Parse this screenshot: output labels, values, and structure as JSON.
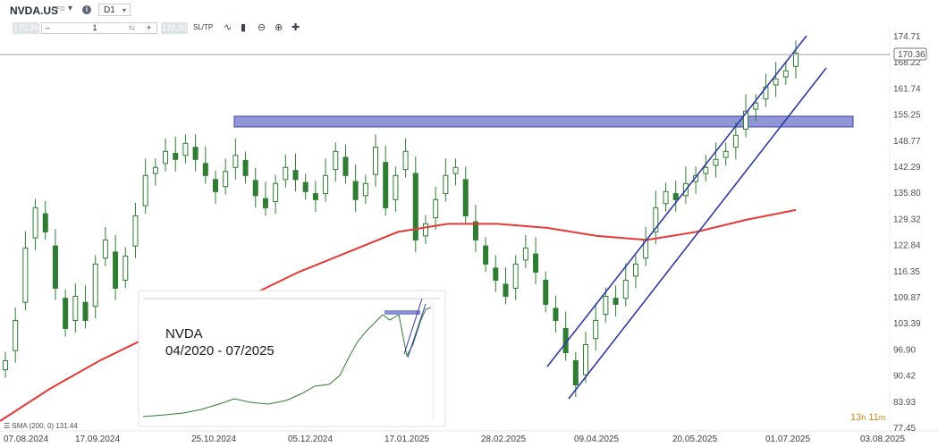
{
  "toolbar": {
    "symbol": "NVDA.US",
    "symbol_type": "CFD",
    "timeframe": "D1",
    "sell_price": "170.36",
    "buy_price": "170.90",
    "quantity": "1",
    "sltp_label": "SL/TP"
  },
  "overlay": {
    "inset_title": "NVDA",
    "inset_subtitle": "04/2020 - 07/2025",
    "sma_legend": "SMA (200, 0) 131.44",
    "timer_hours": "13",
    "timer_h_unit": "h",
    "timer_minutes": "11",
    "timer_m_unit": "m",
    "colors": {
      "candle": "#2e7d32",
      "sma": "#e53935",
      "channel": "#2f3aa4",
      "zone": "#6b73c8",
      "timer": "#d08a1e"
    }
  },
  "chart_data": {
    "type": "candlestick",
    "title": "NVDA.US",
    "ylim": [
      77.45,
      176.0
    ],
    "y_ticks": [
      "174.71",
      "168.22",
      "161.74",
      "155.25",
      "148.77",
      "142.29",
      "135.80",
      "129.32",
      "122.84",
      "116.35",
      "109.87",
      "103.39",
      "96.90",
      "90.42",
      "83.93",
      "77.45"
    ],
    "x_ticks": [
      "07.08.2024",
      "17.09.2024",
      "25.10.2024",
      "05.12.2024",
      "17.01.2025",
      "28.02.2025",
      "09.04.2025",
      "20.05.2025",
      "01.07.2025",
      "03.08.2025"
    ],
    "last_price": "170.36",
    "resistance_zone": [
      151.8,
      154.4
    ],
    "series": [
      {
        "name": "SMA (200, 0)",
        "type": "line",
        "values": [
          79,
          87,
          94,
          100,
          105,
          110,
          116,
          121,
          126,
          128,
          128,
          127,
          125,
          124,
          126,
          129,
          131.44
        ]
      }
    ],
    "closes": [
      94,
      104,
      122,
      132,
      126,
      112,
      102,
      110,
      104,
      118,
      124,
      112,
      120,
      130,
      140,
      142,
      146,
      144,
      148,
      144,
      140,
      136,
      141,
      145,
      140,
      135,
      132,
      138,
      142,
      139,
      136,
      134,
      140,
      146,
      140,
      134,
      138,
      147,
      132,
      140,
      146,
      124,
      128,
      134,
      140,
      142,
      130,
      124,
      118,
      114,
      110,
      118,
      122,
      116,
      108,
      104,
      96,
      88,
      98,
      104,
      110,
      108,
      114,
      118,
      124,
      132,
      136,
      134,
      138,
      140,
      142,
      144,
      146,
      150,
      156,
      158,
      162,
      164,
      166,
      170.36
    ]
  }
}
